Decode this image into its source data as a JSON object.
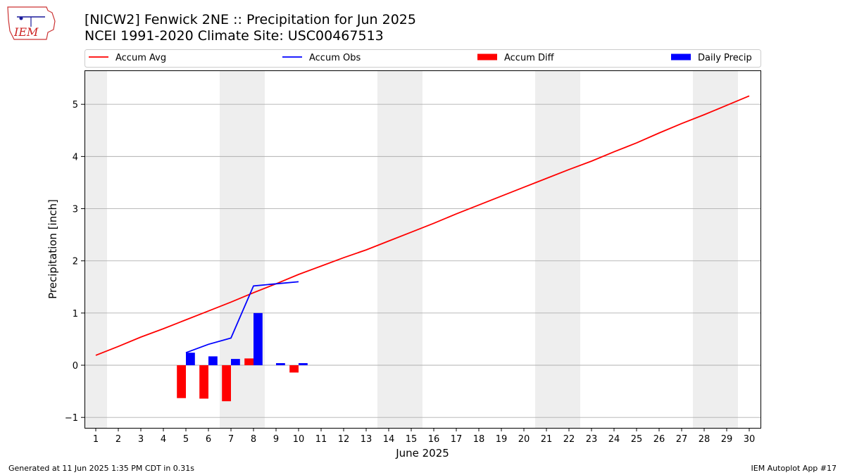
{
  "header": {
    "title_line1": "[NICW2] Fenwick 2NE :: Precipitation for Jun 2025",
    "title_line2": "NCEI 1991-2020 Climate Site: USC00467513",
    "logo_text": "IEM"
  },
  "footer": {
    "generated": "Generated at 11 Jun 2025 1:35 PM CDT in 0.31s",
    "app": "IEM Autoplot App #17"
  },
  "chart_data": {
    "type": "bar",
    "title": "[NICW2] Fenwick 2NE :: Precipitation for Jun 2025",
    "subtitle": "NCEI 1991-2020 Climate Site: USC00467513",
    "xlabel": "June 2025",
    "ylabel": "Precipitation [inch]",
    "xlim": [
      0.5,
      30.5
    ],
    "ylim": [
      -1.2,
      5.65
    ],
    "x_ticks": [
      1,
      2,
      3,
      4,
      5,
      6,
      7,
      8,
      9,
      10,
      11,
      12,
      13,
      14,
      15,
      16,
      17,
      18,
      19,
      20,
      21,
      22,
      23,
      24,
      25,
      26,
      27,
      28,
      29,
      30
    ],
    "y_ticks": [
      -1,
      0,
      1,
      2,
      3,
      4,
      5
    ],
    "grid": "y",
    "legend_placement": "top",
    "weekend_shading": [
      [
        0.5,
        1.5
      ],
      [
        6.5,
        8.5
      ],
      [
        13.5,
        15.5
      ],
      [
        20.5,
        22.5
      ],
      [
        27.5,
        29.5
      ]
    ],
    "colors": {
      "accum_avg": "#ff0000",
      "accum_obs": "#0000ff",
      "accum_diff": "#ff0000",
      "daily_precip": "#0000ff",
      "shade": "#eeeeee",
      "grid": "#b0b0b0"
    },
    "series": [
      {
        "name": "Accum Avg",
        "type": "line",
        "x": [
          1,
          2,
          3,
          4,
          5,
          6,
          7,
          8,
          9,
          10,
          11,
          12,
          13,
          14,
          15,
          16,
          17,
          18,
          19,
          20,
          21,
          22,
          23,
          24,
          25,
          26,
          27,
          28,
          29,
          30
        ],
        "values": [
          0.19,
          0.36,
          0.54,
          0.7,
          0.87,
          1.04,
          1.21,
          1.39,
          1.56,
          1.74,
          1.9,
          2.06,
          2.21,
          2.38,
          2.55,
          2.72,
          2.9,
          3.07,
          3.24,
          3.41,
          3.58,
          3.75,
          3.91,
          4.09,
          4.26,
          4.45,
          4.63,
          4.8,
          4.98,
          5.16
        ]
      },
      {
        "name": "Accum Obs",
        "type": "line",
        "x": [
          5,
          6,
          7,
          8,
          9,
          10
        ],
        "values": [
          0.24,
          0.4,
          0.52,
          1.52,
          1.56,
          1.6
        ]
      },
      {
        "name": "Accum Diff",
        "type": "bar",
        "x": [
          5,
          6,
          7,
          8,
          9,
          10
        ],
        "values": [
          -0.63,
          -0.64,
          -0.69,
          0.13,
          0.0,
          -0.14
        ]
      },
      {
        "name": "Daily Precip",
        "type": "bar",
        "x": [
          5,
          6,
          7,
          8,
          9,
          10
        ],
        "values": [
          0.24,
          0.17,
          0.12,
          1.0,
          0.04,
          0.04
        ]
      }
    ]
  }
}
